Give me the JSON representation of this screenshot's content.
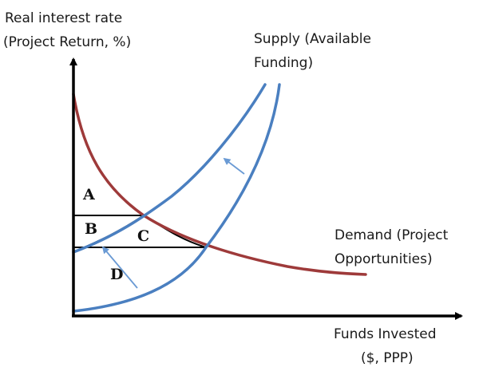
{
  "y_axis_label": [
    "Real interest rate",
    "(Project Return, %)"
  ],
  "x_axis_label": [
    "Funds Invested",
    "($, PPP)"
  ],
  "supply_label": [
    "Supply (Available",
    "Funding)"
  ],
  "demand_label": [
    "Demand (Project",
    "Opportunities)"
  ],
  "areas": {
    "a": "A",
    "b": "B",
    "c": "C",
    "d": "D"
  },
  "colors": {
    "supply": "#4a7fc0",
    "demand": "#9e3a3a",
    "axis": "#000000",
    "outline": "#000000",
    "shift_arrow": "#6a9ad4"
  },
  "icons": {
    "shift_arrow_upper": "arrow-up-left-icon",
    "shift_arrow_lower": "arrow-up-left-icon"
  }
}
